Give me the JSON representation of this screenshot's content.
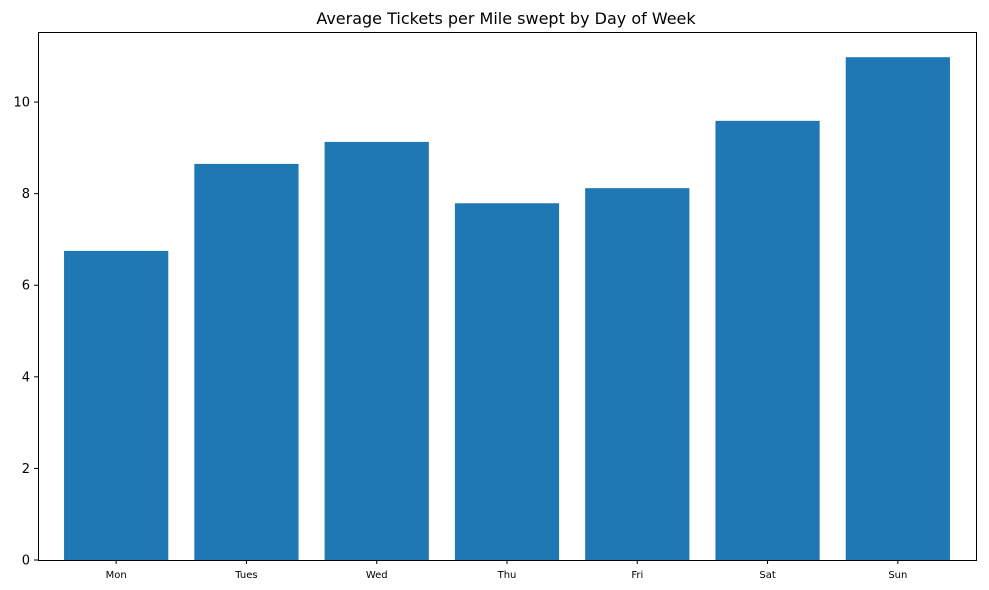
{
  "chart_data": {
    "type": "bar",
    "title": "Average Tickets per Mile swept by Day of Week",
    "xlabel": "",
    "ylabel": "",
    "categories": [
      "Mon",
      "Tues",
      "Wed",
      "Thu",
      "Fri",
      "Sat",
      "Sun"
    ],
    "values": [
      6.75,
      8.65,
      9.13,
      7.79,
      8.12,
      9.59,
      10.98
    ],
    "ylim": [
      0,
      11.53
    ],
    "yticks": [
      0,
      2,
      4,
      6,
      8,
      10
    ],
    "grid": false,
    "legend": "none",
    "bar_color": "#1f77b4"
  }
}
